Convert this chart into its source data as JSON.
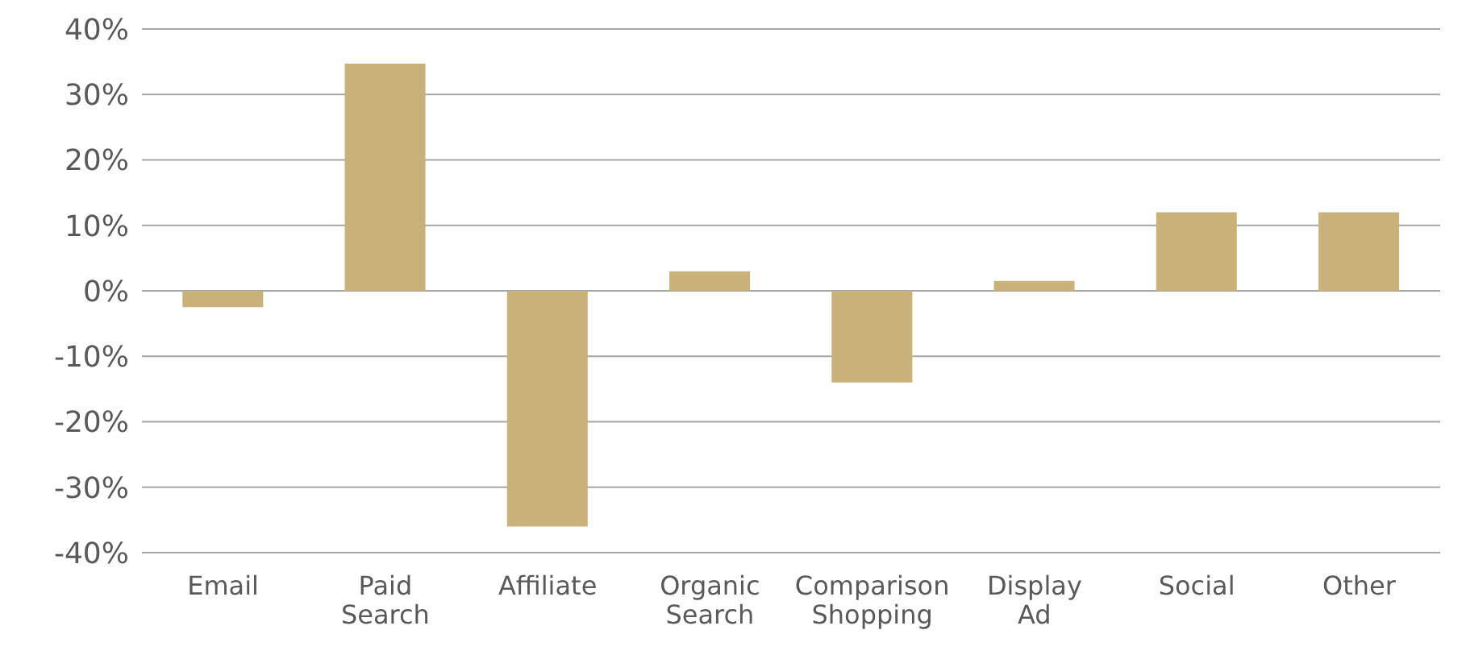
{
  "chart_data": {
    "type": "bar",
    "categories": [
      "Email",
      "Paid Search",
      "Affiliate",
      "Organic Search",
      "Comparison Shopping",
      "Display Ad",
      "Social",
      "Other"
    ],
    "values": [
      -2.5,
      34.7,
      -36,
      3,
      -14,
      1.5,
      12,
      12
    ],
    "color": "#c9b27a",
    "ylim": [
      -40,
      40
    ],
    "yticks": [
      {
        "value": -40,
        "label": "-40%"
      },
      {
        "value": -30,
        "label": "-30%"
      },
      {
        "value": -20,
        "label": "-20%"
      },
      {
        "value": -10,
        "label": "-10%"
      },
      {
        "value": 0,
        "label": "0%"
      },
      {
        "value": 10,
        "label": "10%"
      },
      {
        "value": 20,
        "label": "20%"
      },
      {
        "value": 30,
        "label": "30%"
      },
      {
        "value": 40,
        "label": "40%"
      }
    ],
    "grid": "y"
  }
}
